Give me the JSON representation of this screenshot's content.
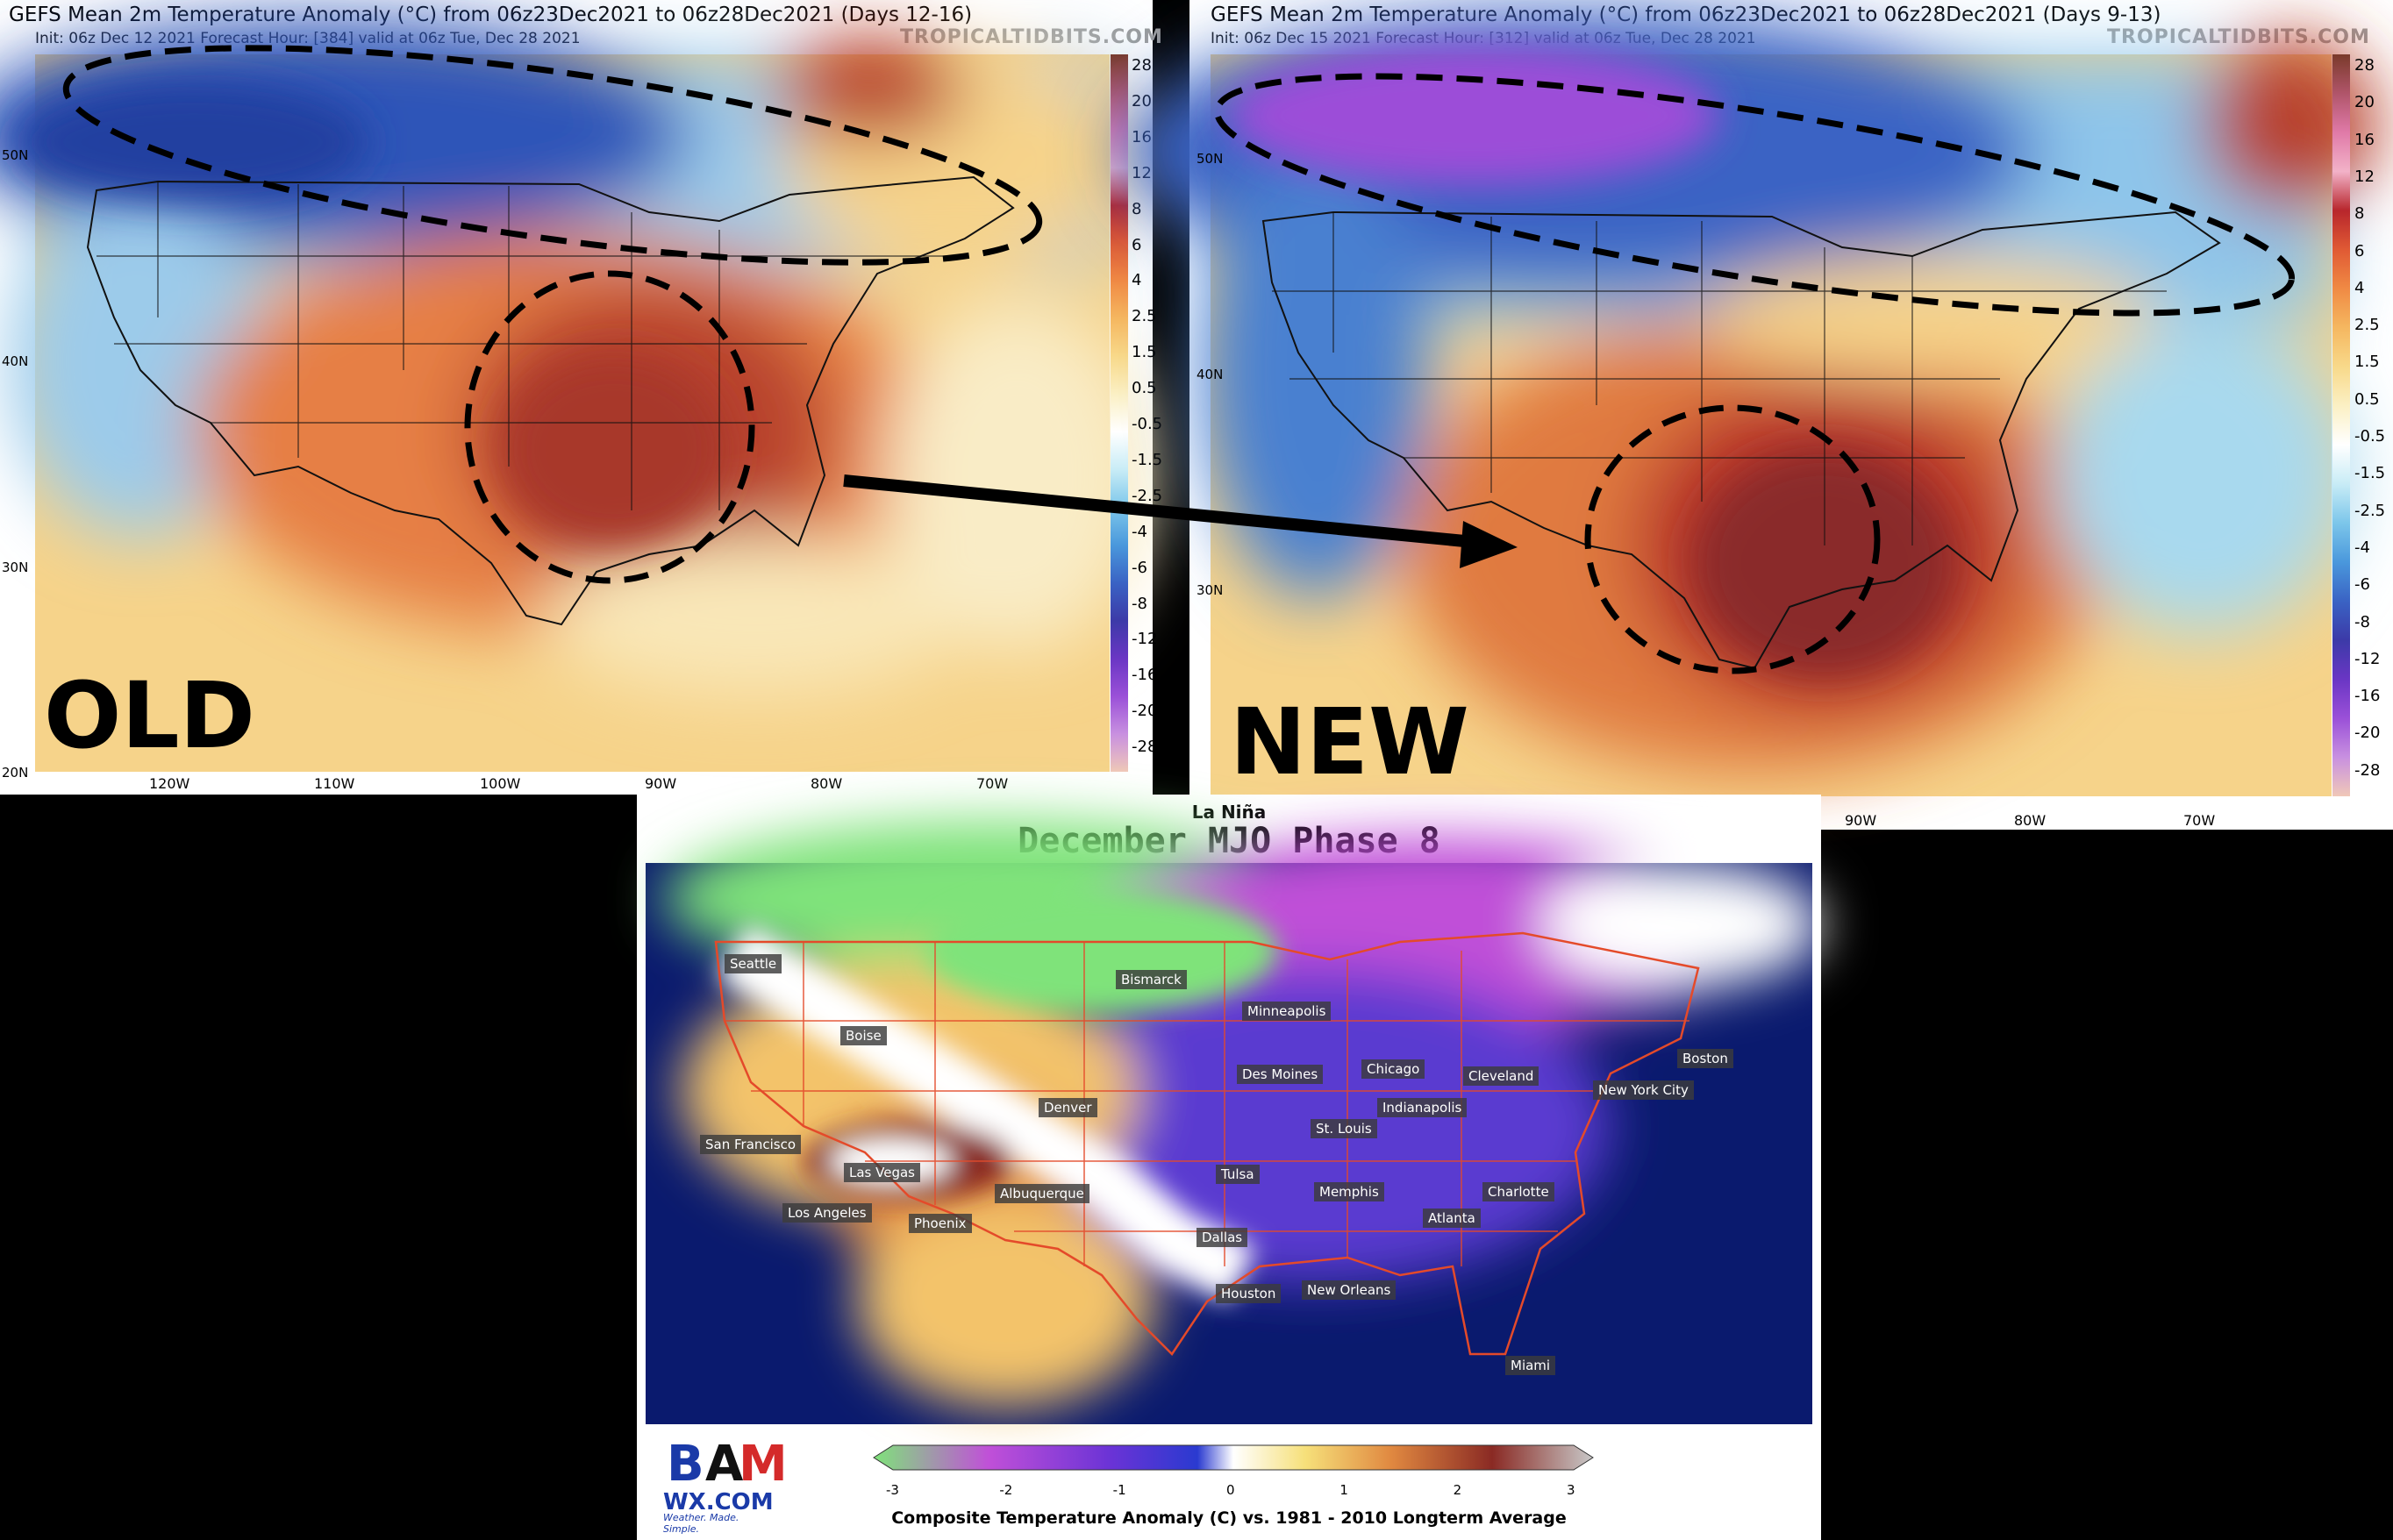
{
  "old_panel": {
    "title": "GEFS Mean 2m Temperature Anomaly (°C) from 06z23Dec2021 to 06z28Dec2021 (Days 12-16)",
    "subtitle": "Init: 06z Dec 12 2021   Forecast Hour: [384]   valid at 06z Tue, Dec 28 2021",
    "brand": "TROPICALTIDBITS.COM",
    "big_label": "OLD",
    "lat_labels": [
      "50N",
      "40N",
      "30N",
      "20N"
    ],
    "lon_labels": [
      "120W",
      "110W",
      "100W",
      "90W",
      "80W",
      "70W"
    ],
    "colorbar_labels": [
      "28",
      "20",
      "16",
      "12",
      "8",
      "6",
      "4",
      "2.5",
      "1.5",
      "0.5",
      "-0.5",
      "-1.5",
      "-2.5",
      "-4",
      "-6",
      "-8",
      "-12",
      "-16",
      "-20",
      "-28"
    ]
  },
  "new_panel": {
    "title": "GEFS Mean 2m Temperature Anomaly (°C) from 06z23Dec2021 to 06z28Dec2021 (Days 9-13)",
    "subtitle": "Init: 06z Dec 15 2021   Forecast Hour: [312]   valid at 06z Tue, Dec 28 2021",
    "brand": "TROPICALTIDBITS.COM",
    "big_label": "NEW",
    "lat_labels": [
      "50N",
      "40N",
      "30N"
    ],
    "lon_labels": [
      "90W",
      "80W",
      "70W"
    ],
    "colorbar_labels": [
      "28",
      "20",
      "16",
      "12",
      "8",
      "6",
      "4",
      "2.5",
      "1.5",
      "0.5",
      "-0.5",
      "-1.5",
      "-2.5",
      "-4",
      "-6",
      "-8",
      "-12",
      "-16",
      "-20",
      "-28"
    ]
  },
  "mjo_panel": {
    "supertitle": "La Niña",
    "title": "December MJO Phase 8",
    "cities": [
      "Seattle",
      "Bismarck",
      "Minneapolis",
      "Boise",
      "Chicago",
      "Des Moines",
      "Cleveland",
      "Boston",
      "New York City",
      "Denver",
      "Indianapolis",
      "San Francisco",
      "St. Louis",
      "Tulsa",
      "Las Vegas",
      "Albuquerque",
      "Memphis",
      "Charlotte",
      "Los Angeles",
      "Phoenix",
      "Atlanta",
      "Dallas",
      "Houston",
      "New Orleans",
      "Miami"
    ],
    "colorbar_ticks": [
      "-3",
      "-2",
      "-1",
      "0",
      "1",
      "2",
      "3"
    ],
    "colorbar_label": "Composite Temperature Anomaly (C) vs. 1981 - 2010 Longterm Average",
    "logo_text": "WX.COM",
    "logo_tagline": "Weather. Made. Simple."
  },
  "colors": {
    "warm_core": "#9e2a22",
    "warm": "#e07a40",
    "mild": "#f6d38a",
    "cool": "#8ec5ea",
    "cold": "#3a63c4",
    "very_cold": "#8a3bd9",
    "mjo_ocean": "#0a1a6e",
    "mjo_green": "#7fe37a",
    "mjo_purple": "#6a33d6"
  }
}
